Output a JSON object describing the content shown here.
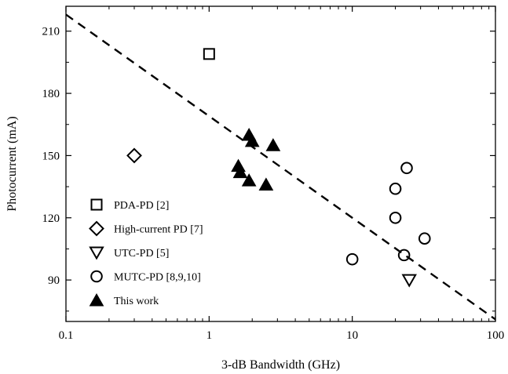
{
  "chart_data": {
    "type": "scatter",
    "title": "",
    "xlabel": "3-dB Bandwidth (GHz)",
    "ylabel": "Photocurrent (mA)",
    "xscale": "log",
    "xlim": [
      0.1,
      100
    ],
    "ylim": [
      70,
      222
    ],
    "x_ticks": [
      0.1,
      1,
      10,
      100
    ],
    "x_tick_labels": [
      "0.1",
      "1",
      "10",
      "100"
    ],
    "y_ticks": [
      90,
      120,
      150,
      180,
      210
    ],
    "y_tick_labels": [
      "90",
      "120",
      "150",
      "180",
      "210"
    ],
    "grid": false,
    "legend_position": "bottom-left",
    "series": [
      {
        "name": "PDA-PD [2]",
        "marker": "square-open",
        "color": "#000000",
        "points": [
          {
            "x": 1.0,
            "y": 199
          }
        ]
      },
      {
        "name": "High-current PD [7]",
        "marker": "diamond-open",
        "color": "#000000",
        "points": [
          {
            "x": 0.3,
            "y": 150
          }
        ]
      },
      {
        "name": "UTC-PD [5]",
        "marker": "triangle-down-open",
        "color": "#000000",
        "points": [
          {
            "x": 25,
            "y": 90
          }
        ]
      },
      {
        "name": "MUTC-PD [8,9,10]",
        "marker": "circle-open",
        "color": "#000000",
        "points": [
          {
            "x": 10,
            "y": 100
          },
          {
            "x": 20,
            "y": 134
          },
          {
            "x": 20,
            "y": 120
          },
          {
            "x": 23,
            "y": 102
          },
          {
            "x": 24,
            "y": 144
          },
          {
            "x": 32,
            "y": 110
          }
        ]
      },
      {
        "name": "This work",
        "marker": "triangle-up-filled",
        "color": "#000000",
        "points": [
          {
            "x": 1.6,
            "y": 145
          },
          {
            "x": 1.65,
            "y": 142
          },
          {
            "x": 1.9,
            "y": 138
          },
          {
            "x": 1.9,
            "y": 160
          },
          {
            "x": 2.0,
            "y": 157
          },
          {
            "x": 2.5,
            "y": 136
          },
          {
            "x": 2.8,
            "y": 155
          }
        ]
      }
    ],
    "trend_line": {
      "style": "dashed",
      "color": "#000000",
      "points": [
        {
          "x": 0.1,
          "y": 218
        },
        {
          "x": 100,
          "y": 71
        }
      ]
    }
  }
}
